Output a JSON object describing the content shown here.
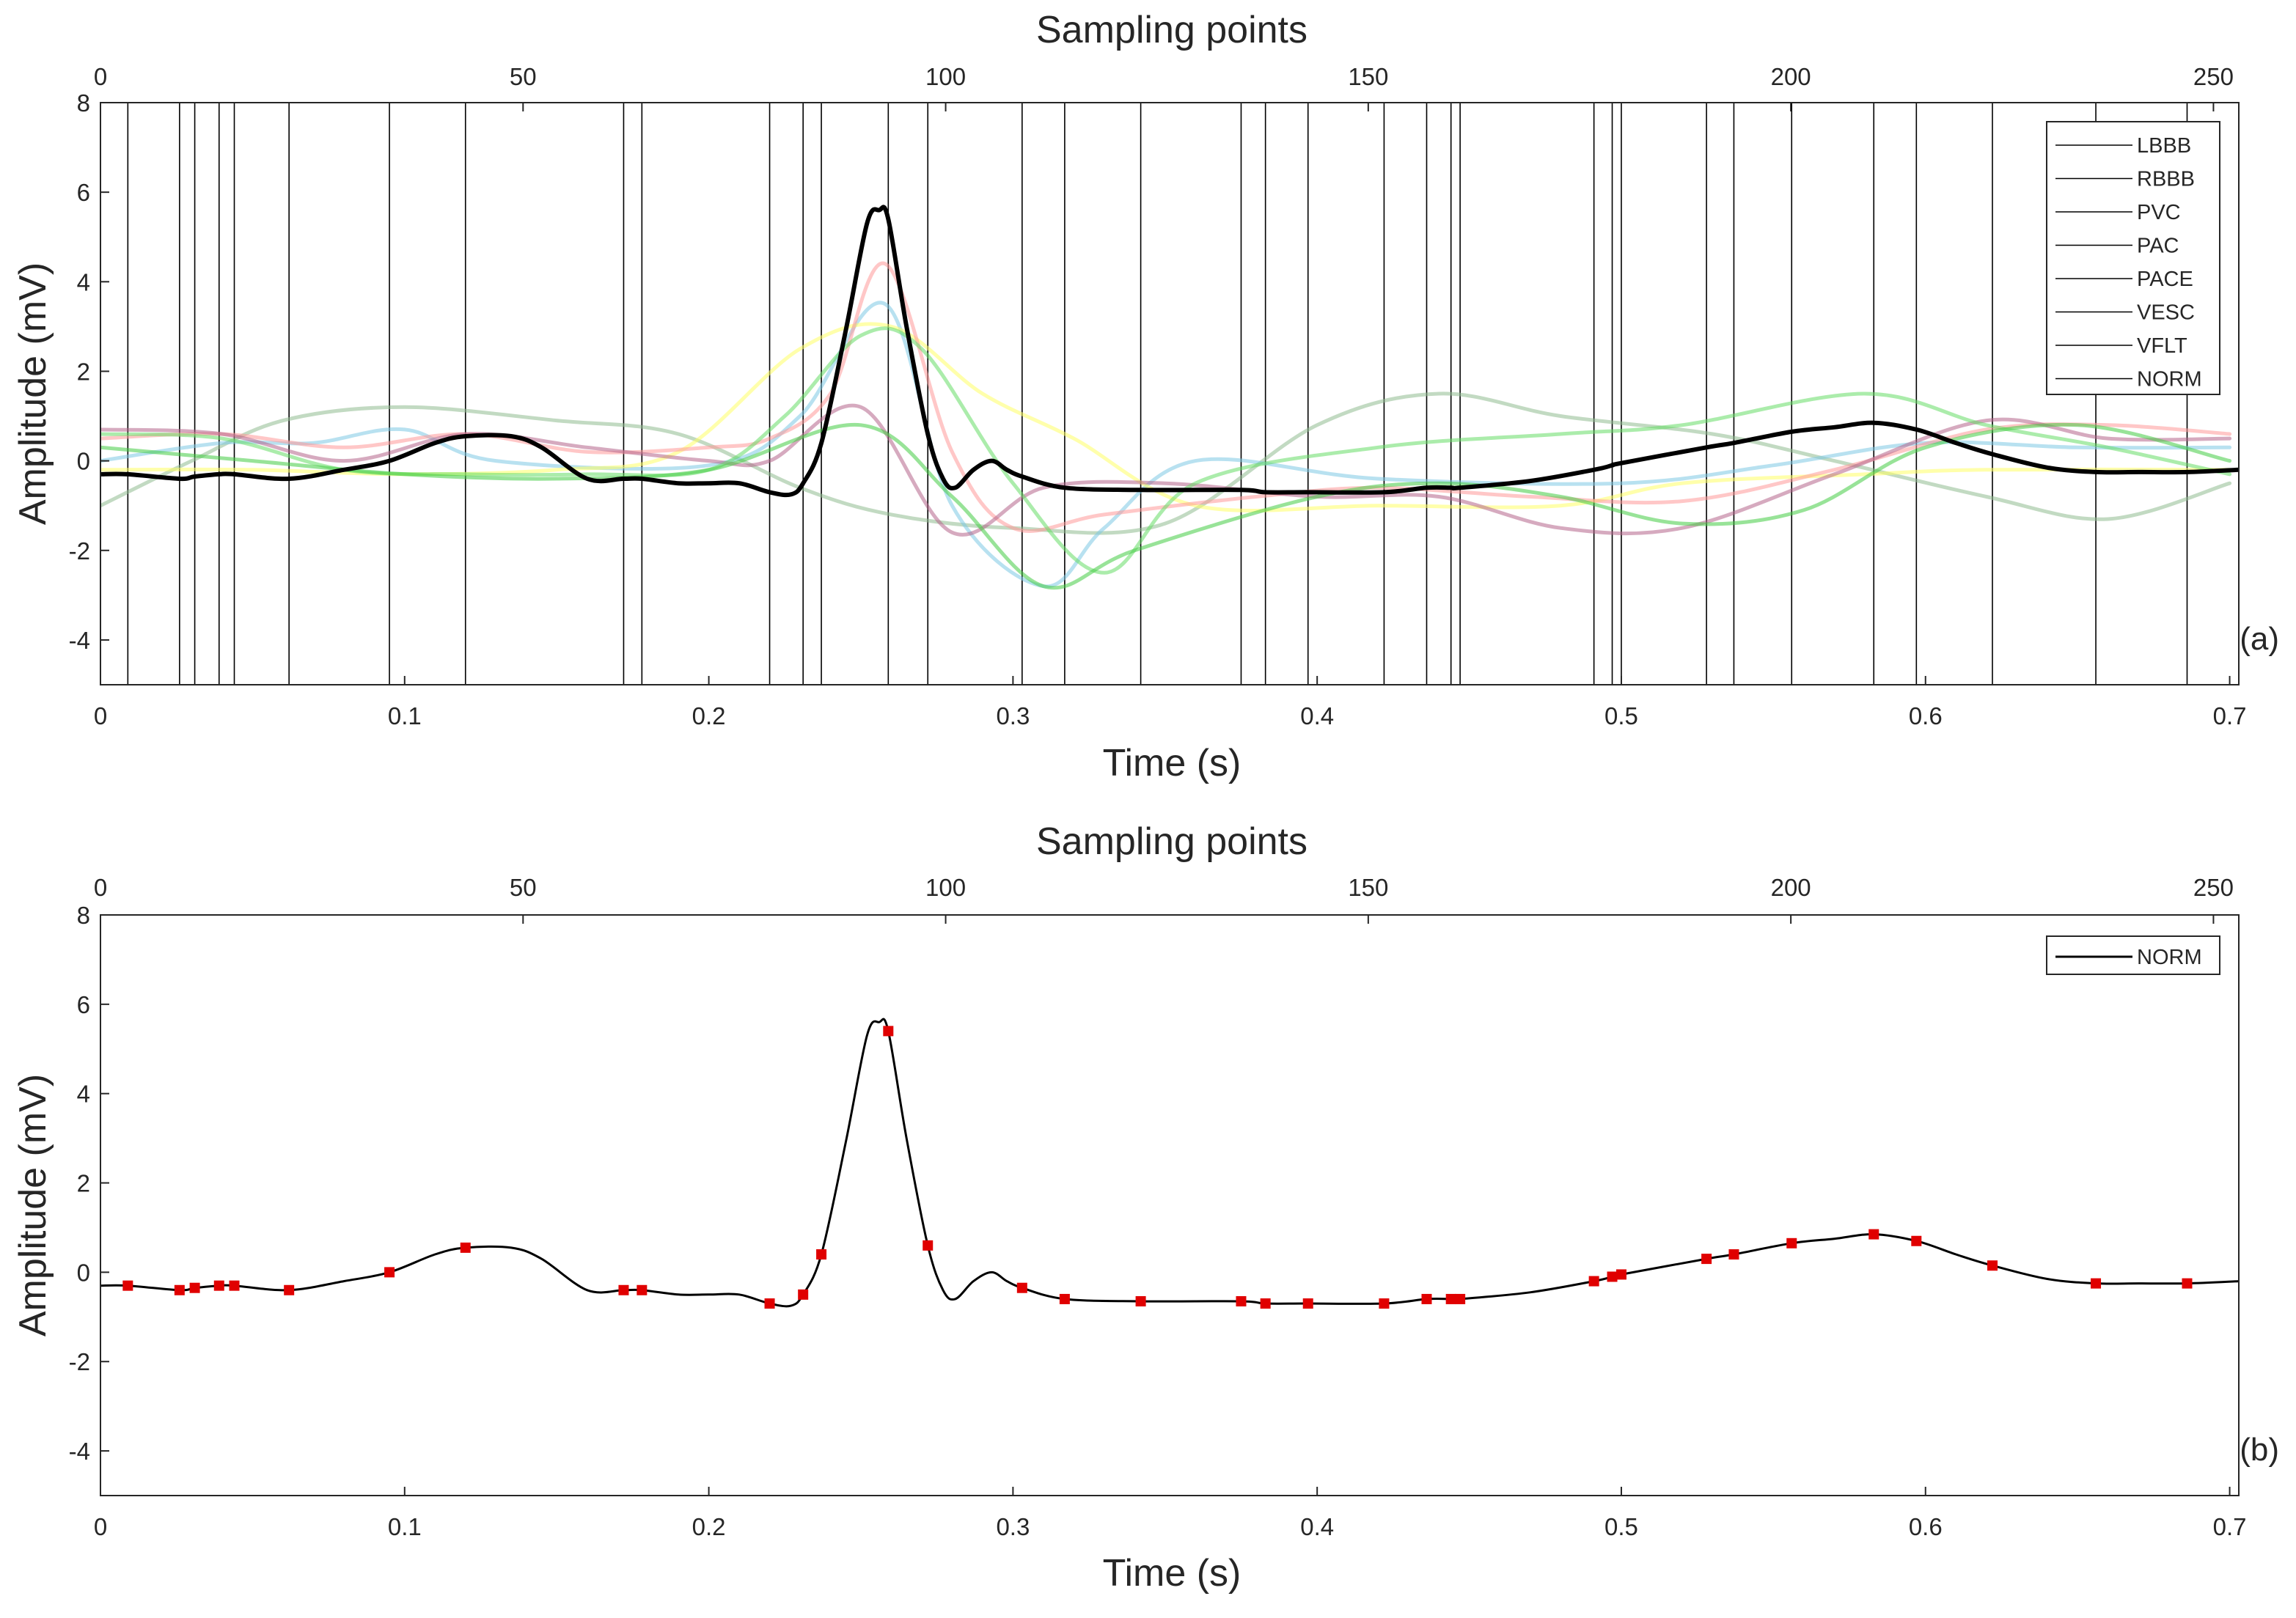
{
  "chart_data": [
    {
      "panel_label": "(a)",
      "type": "line",
      "top_axis_label": "Sampling points",
      "top_ticks": [
        0,
        50,
        100,
        150,
        200,
        250
      ],
      "top_range": [
        0,
        253
      ],
      "xlabel": "Time (s)",
      "xticks": [
        0,
        0.1,
        0.2,
        0.3,
        0.4,
        0.5,
        0.6,
        0.7
      ],
      "xlim": [
        0,
        0.703
      ],
      "ylabel": "Amplitude (mV)",
      "yticks": [
        -4,
        -2,
        0,
        2,
        4,
        6,
        8
      ],
      "ylim": [
        -5,
        8
      ],
      "legend_position": "top-right",
      "legend": [
        "LBBB",
        "RBBB",
        "PVC",
        "PAC",
        "PACE",
        "VESC",
        "VFLT",
        "NORM"
      ],
      "vertical_lines_time_s": [
        0.009,
        0.026,
        0.031,
        0.039,
        0.044,
        0.062,
        0.095,
        0.12,
        0.172,
        0.178,
        0.22,
        0.231,
        0.237,
        0.259,
        0.272,
        0.303,
        0.317,
        0.342,
        0.375,
        0.383,
        0.397,
        0.422,
        0.436,
        0.444,
        0.447,
        0.491,
        0.497,
        0.5,
        0.528,
        0.537,
        0.556,
        0.583,
        0.597,
        0.622,
        0.656,
        0.686
      ],
      "series": [
        {
          "name": "LBBB",
          "color": "#8fbc8f",
          "x": [
            0,
            0.03,
            0.06,
            0.1,
            0.15,
            0.19,
            0.23,
            0.26,
            0.3,
            0.35,
            0.4,
            0.44,
            0.48,
            0.53,
            0.57,
            0.62,
            0.66,
            0.7
          ],
          "y": [
            -1.0,
            0.0,
            0.9,
            1.2,
            0.9,
            0.6,
            -0.6,
            -1.2,
            -1.5,
            -1.4,
            0.8,
            1.5,
            1.0,
            0.6,
            0.0,
            -0.8,
            -1.3,
            -0.5
          ]
        },
        {
          "name": "RBBB",
          "color": "#7ec8e3",
          "x": [
            0,
            0.04,
            0.07,
            0.1,
            0.13,
            0.2,
            0.23,
            0.258,
            0.28,
            0.31,
            0.33,
            0.36,
            0.42,
            0.5,
            0.55,
            0.6,
            0.65,
            0.7
          ],
          "y": [
            0.0,
            0.4,
            0.4,
            0.7,
            0.0,
            -0.1,
            1.0,
            3.5,
            -1.0,
            -2.8,
            -1.5,
            0.0,
            -0.4,
            -0.5,
            -0.1,
            0.4,
            0.3,
            0.3
          ]
        },
        {
          "name": "PVC",
          "color": "#ffff66",
          "x": [
            0,
            0.05,
            0.1,
            0.15,
            0.19,
            0.23,
            0.26,
            0.29,
            0.32,
            0.36,
            0.42,
            0.48,
            0.52,
            0.58,
            0.62,
            0.7
          ],
          "y": [
            -0.2,
            -0.2,
            -0.3,
            -0.2,
            0.2,
            2.5,
            3.0,
            1.5,
            0.5,
            -1.0,
            -1.0,
            -1.0,
            -0.5,
            -0.3,
            -0.2,
            -0.2
          ]
        },
        {
          "name": "PAC",
          "color": "#ff9999",
          "x": [
            0,
            0.04,
            0.08,
            0.12,
            0.16,
            0.2,
            0.22,
            0.24,
            0.258,
            0.28,
            0.3,
            0.33,
            0.38,
            0.42,
            0.47,
            0.52,
            0.57,
            0.62,
            0.66,
            0.7
          ],
          "y": [
            0.5,
            0.6,
            0.3,
            0.6,
            0.2,
            0.3,
            0.5,
            1.5,
            4.4,
            0.2,
            -1.5,
            -1.2,
            -0.8,
            -0.6,
            -0.8,
            -0.9,
            -0.2,
            0.7,
            0.8,
            0.6
          ]
        },
        {
          "name": "PACE",
          "color": "#b5648a",
          "x": [
            0,
            0.04,
            0.08,
            0.12,
            0.16,
            0.2,
            0.22,
            0.25,
            0.28,
            0.31,
            0.35,
            0.4,
            0.44,
            0.48,
            0.52,
            0.57,
            0.62,
            0.66,
            0.7
          ],
          "y": [
            0.7,
            0.6,
            0.0,
            0.6,
            0.3,
            0.0,
            0.0,
            1.2,
            -1.6,
            -0.6,
            -0.5,
            -0.8,
            -0.8,
            -1.5,
            -1.5,
            -0.3,
            0.9,
            0.5,
            0.5
          ]
        },
        {
          "name": "VESC",
          "color": "#66dd66",
          "x": [
            0,
            0.04,
            0.08,
            0.12,
            0.16,
            0.2,
            0.225,
            0.25,
            0.27,
            0.3,
            0.33,
            0.36,
            0.42,
            0.48,
            0.52,
            0.58,
            0.62,
            0.66,
            0.7
          ],
          "y": [
            0.6,
            0.5,
            -0.2,
            -0.3,
            -0.3,
            -0.2,
            1.0,
            2.8,
            2.5,
            -0.5,
            -2.5,
            -0.5,
            0.3,
            0.6,
            0.8,
            1.5,
            0.8,
            0.3,
            -0.3
          ]
        },
        {
          "name": "VFLT",
          "color": "#44cc44",
          "x": [
            0,
            0.05,
            0.1,
            0.15,
            0.2,
            0.25,
            0.28,
            0.31,
            0.34,
            0.4,
            0.44,
            0.48,
            0.52,
            0.56,
            0.6,
            0.65,
            0.7
          ],
          "y": [
            0.3,
            0.0,
            -0.3,
            -0.4,
            -0.2,
            0.8,
            -0.8,
            -2.8,
            -2.0,
            -0.8,
            -0.5,
            -0.8,
            -1.4,
            -1.1,
            0.3,
            0.8,
            0.0
          ]
        },
        {
          "name": "NORM",
          "color": "#000000",
          "x": [
            0,
            0.009,
            0.026,
            0.031,
            0.039,
            0.044,
            0.062,
            0.08,
            0.095,
            0.11,
            0.12,
            0.135,
            0.145,
            0.16,
            0.172,
            0.178,
            0.19,
            0.2,
            0.21,
            0.22,
            0.227,
            0.231,
            0.237,
            0.245,
            0.252,
            0.256,
            0.259,
            0.265,
            0.272,
            0.277,
            0.281,
            0.287,
            0.293,
            0.298,
            0.303,
            0.317,
            0.342,
            0.375,
            0.383,
            0.397,
            0.422,
            0.436,
            0.444,
            0.447,
            0.47,
            0.491,
            0.497,
            0.5,
            0.528,
            0.537,
            0.556,
            0.57,
            0.583,
            0.597,
            0.61,
            0.622,
            0.64,
            0.656,
            0.67,
            0.686,
            0.703
          ],
          "y": [
            -0.3,
            -0.3,
            -0.4,
            -0.35,
            -0.3,
            -0.3,
            -0.4,
            -0.2,
            -0.0,
            0.4,
            0.55,
            0.55,
            0.3,
            -0.4,
            -0.4,
            -0.4,
            -0.5,
            -0.5,
            -0.5,
            -0.7,
            -0.75,
            -0.5,
            0.4,
            2.9,
            5.3,
            5.6,
            5.4,
            3.0,
            0.6,
            -0.4,
            -0.6,
            -0.2,
            0.0,
            -0.2,
            -0.35,
            -0.6,
            -0.65,
            -0.65,
            -0.7,
            -0.7,
            -0.7,
            -0.6,
            -0.6,
            -0.6,
            -0.45,
            -0.2,
            -0.1,
            -0.05,
            0.3,
            0.4,
            0.65,
            0.75,
            0.85,
            0.7,
            0.4,
            0.15,
            -0.15,
            -0.25,
            -0.25,
            -0.25,
            -0.2
          ]
        }
      ]
    },
    {
      "panel_label": "(b)",
      "type": "line",
      "top_axis_label": "Sampling points",
      "top_ticks": [
        0,
        50,
        100,
        150,
        200,
        250
      ],
      "top_range": [
        0,
        253
      ],
      "xlabel": "Time (s)",
      "xticks": [
        0,
        0.1,
        0.2,
        0.3,
        0.4,
        0.5,
        0.6,
        0.7
      ],
      "xlim": [
        0,
        0.703
      ],
      "ylabel": "Amplitude (mV)",
      "yticks": [
        -4,
        -2,
        0,
        2,
        4,
        6,
        8
      ],
      "ylim": [
        -5,
        8
      ],
      "legend_position": "top-right",
      "legend": [
        "NORM"
      ],
      "series": [
        {
          "name": "NORM",
          "color": "#000000",
          "x": [
            0,
            0.009,
            0.026,
            0.031,
            0.039,
            0.044,
            0.062,
            0.08,
            0.095,
            0.11,
            0.12,
            0.135,
            0.145,
            0.16,
            0.172,
            0.178,
            0.19,
            0.2,
            0.21,
            0.22,
            0.227,
            0.231,
            0.237,
            0.245,
            0.252,
            0.256,
            0.259,
            0.265,
            0.272,
            0.277,
            0.281,
            0.287,
            0.293,
            0.298,
            0.303,
            0.317,
            0.342,
            0.375,
            0.383,
            0.397,
            0.422,
            0.436,
            0.444,
            0.447,
            0.47,
            0.491,
            0.497,
            0.5,
            0.528,
            0.537,
            0.556,
            0.57,
            0.583,
            0.597,
            0.61,
            0.622,
            0.64,
            0.656,
            0.67,
            0.686,
            0.703
          ],
          "y": [
            -0.3,
            -0.3,
            -0.4,
            -0.35,
            -0.3,
            -0.3,
            -0.4,
            -0.2,
            -0.0,
            0.4,
            0.55,
            0.55,
            0.3,
            -0.4,
            -0.4,
            -0.4,
            -0.5,
            -0.5,
            -0.5,
            -0.7,
            -0.75,
            -0.5,
            0.4,
            2.9,
            5.3,
            5.6,
            5.4,
            3.0,
            0.6,
            -0.4,
            -0.6,
            -0.2,
            0.0,
            -0.2,
            -0.35,
            -0.6,
            -0.65,
            -0.65,
            -0.7,
            -0.7,
            -0.7,
            -0.6,
            -0.6,
            -0.6,
            -0.45,
            -0.2,
            -0.1,
            -0.05,
            0.3,
            0.4,
            0.65,
            0.75,
            0.85,
            0.7,
            0.4,
            0.15,
            -0.15,
            -0.25,
            -0.25,
            -0.25,
            -0.2
          ]
        }
      ],
      "markers": {
        "color": "#e00000",
        "x": [
          0.009,
          0.026,
          0.031,
          0.039,
          0.044,
          0.062,
          0.095,
          0.12,
          0.172,
          0.178,
          0.22,
          0.231,
          0.237,
          0.259,
          0.272,
          0.303,
          0.317,
          0.342,
          0.375,
          0.383,
          0.397,
          0.422,
          0.436,
          0.444,
          0.447,
          0.491,
          0.497,
          0.5,
          0.528,
          0.537,
          0.556,
          0.583,
          0.597,
          0.622,
          0.656,
          0.686
        ],
        "y": [
          -0.3,
          -0.4,
          -0.35,
          -0.3,
          -0.3,
          -0.4,
          -0.0,
          0.55,
          -0.4,
          -0.4,
          -0.7,
          -0.5,
          0.4,
          5.4,
          0.6,
          -0.35,
          -0.6,
          -0.65,
          -0.65,
          -0.7,
          -0.7,
          -0.7,
          -0.6,
          -0.6,
          -0.6,
          -0.2,
          -0.1,
          -0.05,
          0.3,
          0.4,
          0.65,
          0.85,
          0.7,
          0.15,
          -0.25,
          -0.25
        ]
      }
    }
  ]
}
